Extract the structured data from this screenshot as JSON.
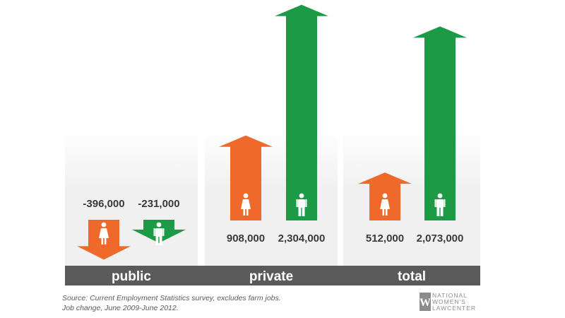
{
  "chart_data": {
    "type": "bar",
    "categories": [
      "public",
      "private",
      "total"
    ],
    "series": [
      {
        "values": [
          -396000,
          908000,
          512000
        ],
        "color": "#ef6a2a",
        "icon": "female-figure-icon"
      },
      {
        "values": [
          -231000,
          2304000,
          2073000
        ],
        "color": "#1c9a46",
        "icon": "male-figure-icon"
      }
    ],
    "value_labels": [
      [
        "-396,000",
        "-231,000"
      ],
      [
        "908,000",
        "2,304,000"
      ],
      [
        "512,000",
        "2,073,000"
      ]
    ],
    "ylim": [
      -500000,
      2500000
    ]
  },
  "footnote": {
    "line1": "Source: Current Employment Statistics survey, excludes farm jobs.",
    "line2": "Job change, June 2009-June 2012."
  },
  "logo": {
    "mark": "W",
    "line1": "NATIONAL",
    "line2": "WOMEN'S",
    "line3": "LAWCENTER"
  },
  "colors": {
    "band": "#5a5a5a",
    "panel": "#f0f0f0"
  }
}
